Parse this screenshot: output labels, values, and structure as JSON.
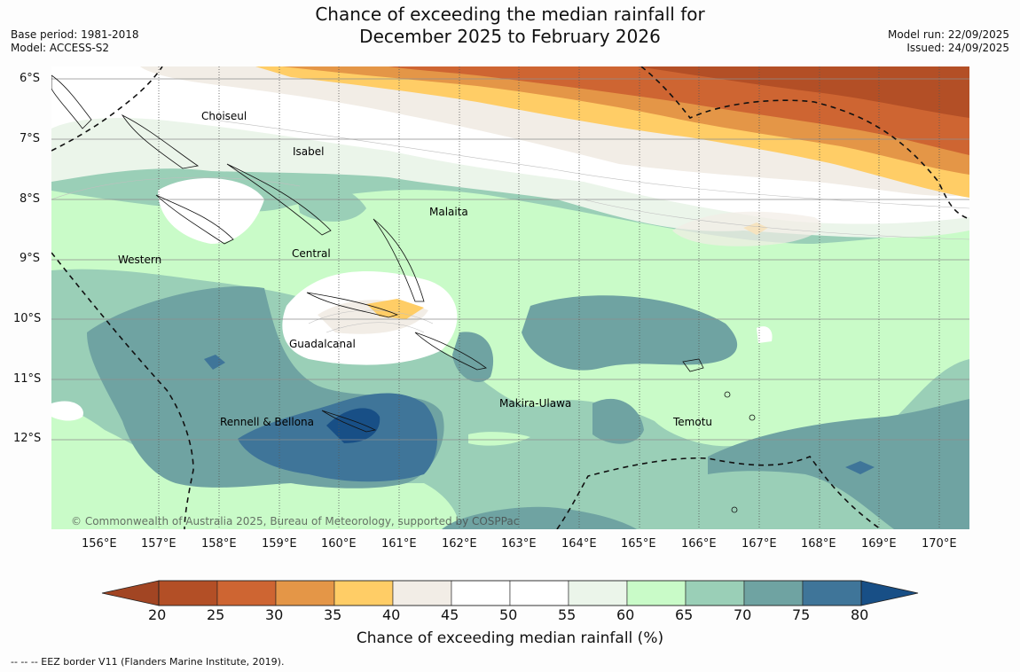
{
  "header": {
    "title_line1": "Chance of exceeding the median rainfall for",
    "title_line2": "December 2025 to February 2026",
    "base_period": "Base period: 1981-2018",
    "model": "Model: ACCESS-S2",
    "model_run": "Model run: 22/09/2025",
    "issued": "Issued: 24/09/2025"
  },
  "map": {
    "copyright": "© Commonwealth of Australia 2025, Bureau of Meteorology, supported by COSPPac",
    "lat_labels": [
      "6°S",
      "7°S",
      "8°S",
      "9°S",
      "10°S",
      "11°S",
      "12°S"
    ],
    "lon_labels": [
      "156°E",
      "157°E",
      "158°E",
      "159°E",
      "160°E",
      "161°E",
      "162°E",
      "163°E",
      "164°E",
      "165°E",
      "166°E",
      "167°E",
      "168°E",
      "169°E",
      "170°E"
    ],
    "provinces": [
      "Choiseul",
      "Isabel",
      "Malaita",
      "Central",
      "Western",
      "Guadalcanal",
      "Rennell & Bellona",
      "Makira-Ulawa",
      "Temotu"
    ]
  },
  "colorbar": {
    "ticks": [
      "20",
      "25",
      "30",
      "35",
      "40",
      "45",
      "50",
      "55",
      "60",
      "65",
      "70",
      "75",
      "80"
    ],
    "colors": [
      "#b34f26",
      "#ce6532",
      "#e49647",
      "#ffcd66",
      "#f2ede6",
      "#ffffff",
      "#ffffff",
      "#ebf5ea",
      "#c9fbc8",
      "#9acfb7",
      "#6fa3a2",
      "#3f7599"
    ],
    "end_low_color": "#a24523",
    "end_high_color": "#184f86",
    "label": "Chance of exceeding median rainfall (%)"
  },
  "footnote": "--  --  -- EEZ border V11 (Flanders Marine Institute, 2019)."
}
